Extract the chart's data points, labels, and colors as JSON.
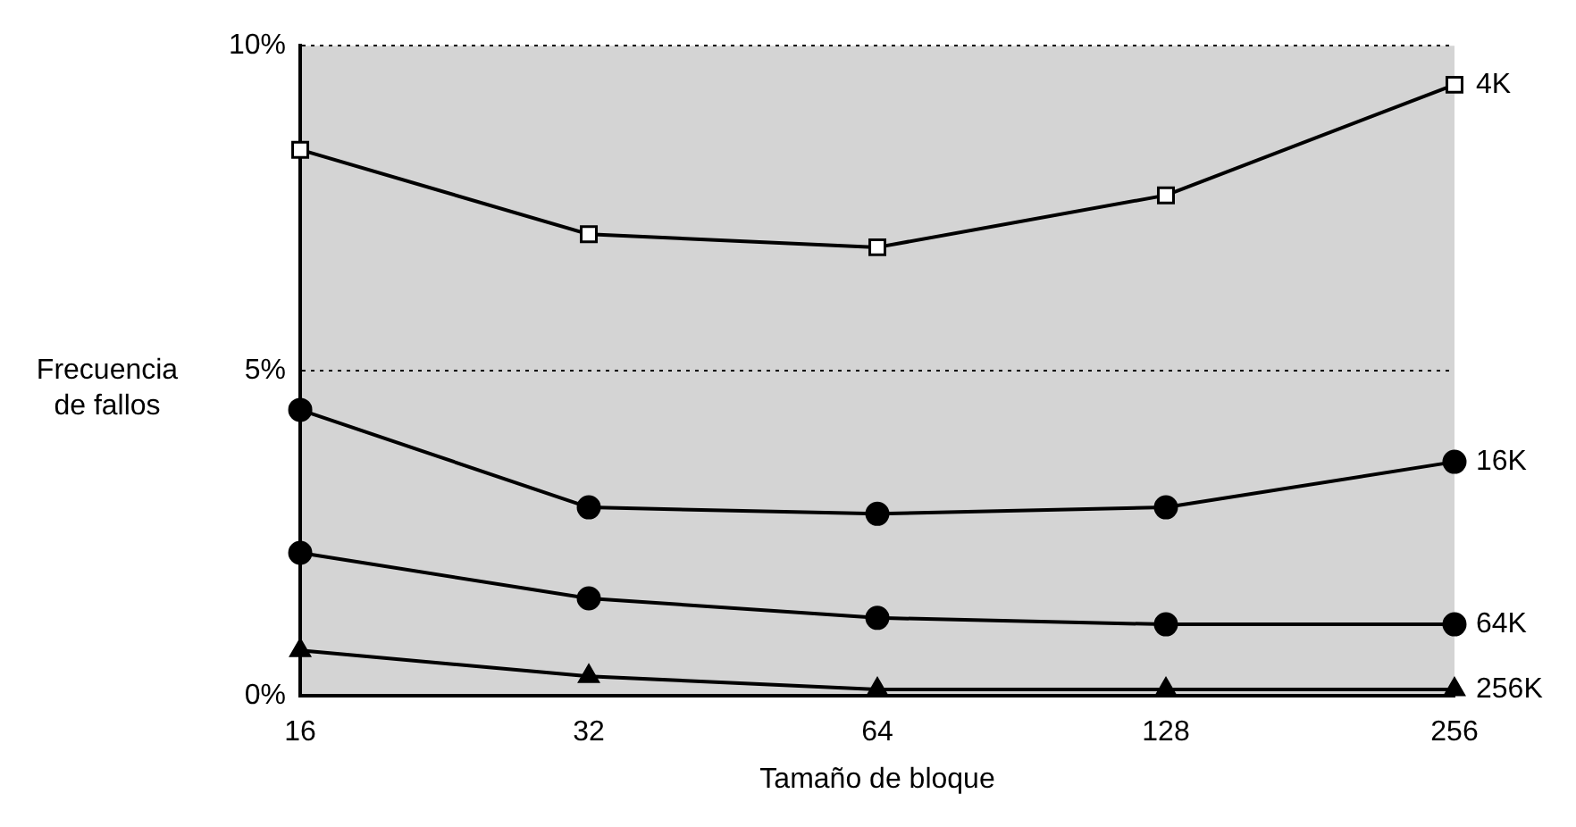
{
  "chart_data": {
    "type": "line",
    "xlabel": "Tamaño de bloque",
    "ylabel": "Frecuencia de fallos",
    "categories": [
      "16",
      "32",
      "64",
      "128",
      "256"
    ],
    "series": [
      {
        "name": "4K",
        "color": "#000000",
        "marker": "square",
        "values": [
          8.4,
          7.1,
          6.9,
          7.7,
          9.4
        ]
      },
      {
        "name": "16K",
        "color": "#000000",
        "marker": "circle",
        "values": [
          4.4,
          2.9,
          2.8,
          2.9,
          3.6
        ]
      },
      {
        "name": "64K",
        "color": "#000000",
        "marker": "circle",
        "values": [
          2.2,
          1.5,
          1.2,
          1.1,
          1.1
        ]
      },
      {
        "name": "256K",
        "color": "#000000",
        "marker": "triangle",
        "values": [
          0.7,
          0.3,
          0.1,
          0.1,
          0.1
        ]
      }
    ],
    "ylim": [
      0,
      10
    ],
    "yticks": [
      {
        "value": 0,
        "label": "0%"
      },
      {
        "value": 5,
        "label": "5%"
      },
      {
        "value": 10,
        "label": "10%"
      }
    ],
    "grid": "y",
    "line_style": "solid"
  }
}
